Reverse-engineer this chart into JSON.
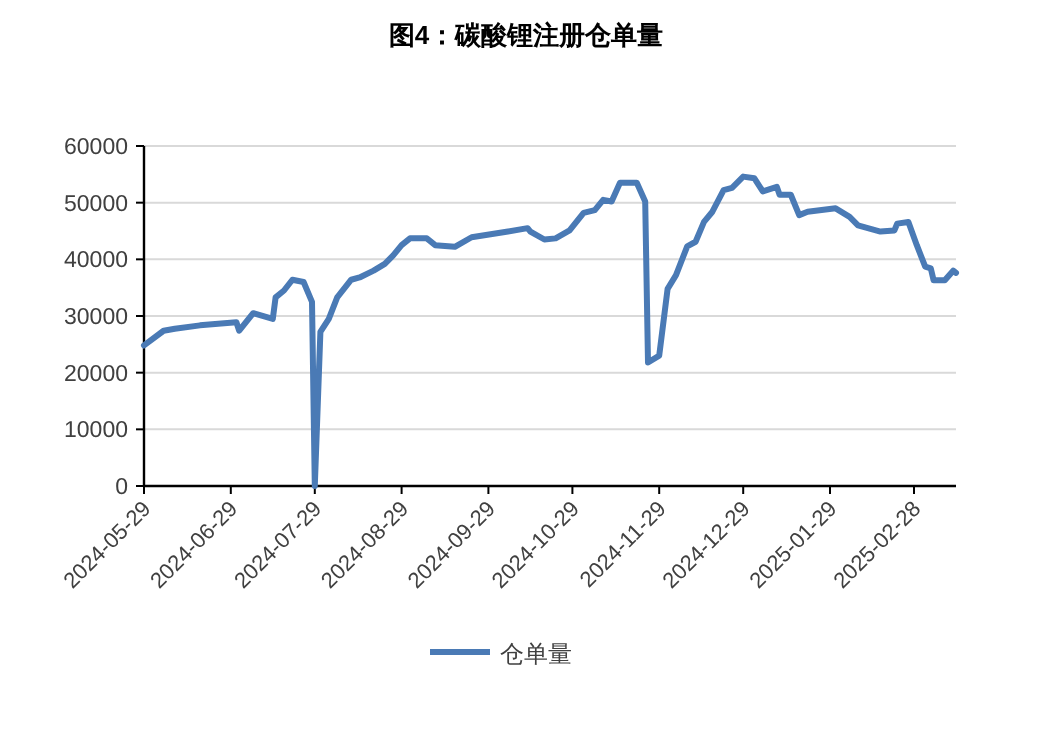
{
  "chart_data": {
    "type": "line",
    "title": "图4：碳酸锂注册仓单量",
    "x": [
      "2024-05-29",
      "2024-06-05",
      "2024-06-09",
      "2024-06-18",
      "2024-07-01",
      "2024-07-02",
      "2024-07-07",
      "2024-07-14",
      "2024-07-15",
      "2024-07-18",
      "2024-07-21",
      "2024-07-25",
      "2024-07-28",
      "2024-07-29",
      "2024-07-31",
      "2024-08-03",
      "2024-08-06",
      "2024-08-11",
      "2024-08-14",
      "2024-08-19",
      "2024-08-23",
      "2024-08-26",
      "2024-08-29",
      "2024-09-01",
      "2024-09-07",
      "2024-09-10",
      "2024-09-17",
      "2024-09-23",
      "2024-10-06",
      "2024-10-13",
      "2024-10-14",
      "2024-10-19",
      "2024-10-23",
      "2024-10-28",
      "2024-11-02",
      "2024-11-06",
      "2024-11-09",
      "2024-11-12",
      "2024-11-15",
      "2024-11-21",
      "2024-11-24",
      "2024-11-25",
      "2024-11-29",
      "2024-12-02",
      "2024-12-05",
      "2024-12-09",
      "2024-12-12",
      "2024-12-15",
      "2024-12-18",
      "2024-12-22",
      "2024-12-25",
      "2024-12-29",
      "2025-01-02",
      "2025-01-05",
      "2025-01-10",
      "2025-01-11",
      "2025-01-15",
      "2025-01-18",
      "2025-01-21",
      "2025-01-31",
      "2025-02-05",
      "2025-02-08",
      "2025-02-16",
      "2025-02-21",
      "2025-02-22",
      "2025-02-26",
      "2025-03-01",
      "2025-03-04",
      "2025-03-06",
      "2025-03-07",
      "2025-03-11",
      "2025-03-14",
      "2025-03-15"
    ],
    "series": [
      {
        "name": "仓单量",
        "color": "#4a7ab5",
        "values": [
          24800,
          27400,
          27750,
          28350,
          28900,
          27400,
          30500,
          29500,
          33300,
          34500,
          36400,
          36000,
          32500,
          0,
          27200,
          29500,
          33300,
          36400,
          36800,
          38000,
          39200,
          40700,
          42500,
          43700,
          43700,
          42500,
          42200,
          43900,
          44900,
          45500,
          44900,
          43500,
          43700,
          45100,
          48200,
          48700,
          50500,
          50200,
          53500,
          53500,
          50200,
          21800,
          23000,
          34800,
          37200,
          42300,
          43100,
          46600,
          48400,
          52200,
          52600,
          54600,
          54300,
          52000,
          52800,
          51400,
          51400,
          47800,
          48400,
          49000,
          47500,
          46000,
          44900,
          45100,
          46300,
          46600,
          42500,
          38700,
          38400,
          36300,
          36300,
          38000,
          37600
        ]
      }
    ],
    "xlim": [
      "2024-05-29",
      "2025-03-15"
    ],
    "xticks": [
      "2024-05-29",
      "2024-06-29",
      "2024-07-29",
      "2024-08-29",
      "2024-09-29",
      "2024-10-29",
      "2024-11-29",
      "2024-12-29",
      "2025-01-29",
      "2025-02-28"
    ],
    "ylim": [
      0,
      60000
    ],
    "yticks": [
      0,
      10000,
      20000,
      30000,
      40000,
      50000,
      60000
    ],
    "grid": "y",
    "legend": "bottom",
    "marker": "none",
    "line_style": "solid"
  }
}
